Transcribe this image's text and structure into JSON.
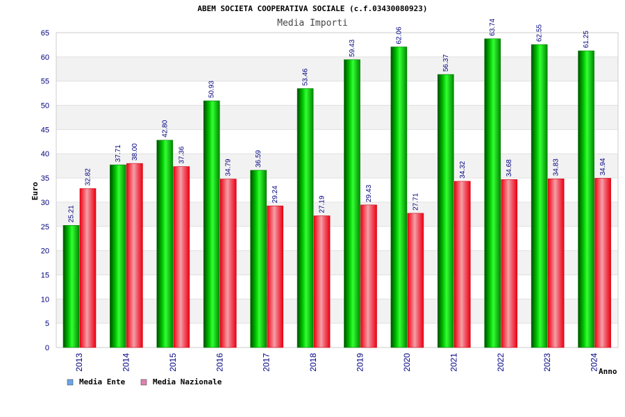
{
  "chart_data": {
    "type": "bar",
    "title": "ABEM SOCIETA COOPERATIVA SOCIALE (c.f.03430080923)",
    "subtitle": "Media Importi",
    "ylabel": "Euro",
    "xlabel": "Anno",
    "ylim": [
      0,
      65
    ],
    "yticks": [
      0,
      5,
      10,
      15,
      20,
      25,
      30,
      35,
      40,
      45,
      50,
      55,
      60,
      65
    ],
    "categories": [
      "2013",
      "2014",
      "2015",
      "2016",
      "2017",
      "2018",
      "2019",
      "2020",
      "2021",
      "2022",
      "2023",
      "2024"
    ],
    "series": [
      {
        "name": "Media Ente",
        "values": [
          25.21,
          37.71,
          42.8,
          50.93,
          36.59,
          53.46,
          59.43,
          62.06,
          56.37,
          63.74,
          62.55,
          61.25
        ],
        "labels": [
          "25.21",
          "37.71",
          "42.80",
          "50.93",
          "36.59",
          "53.46",
          "59.43",
          "62.06",
          "56.37",
          "63.74",
          "62.55",
          "61.25"
        ],
        "color": "#00b800",
        "legend_color": "#6aa6e8"
      },
      {
        "name": "Media Nazionale",
        "values": [
          32.82,
          38.0,
          37.36,
          34.79,
          29.24,
          27.19,
          29.43,
          27.71,
          34.32,
          34.68,
          34.83,
          34.94
        ],
        "labels": [
          "32.82",
          "38.00",
          "37.36",
          "34.79",
          "29.24",
          "27.19",
          "29.43",
          "27.71",
          "34.32",
          "34.68",
          "34.83",
          "34.94"
        ],
        "color": "#ee1122",
        "legend_color": "#e080b0"
      }
    ],
    "grid": true,
    "legend": "bottom-left"
  }
}
